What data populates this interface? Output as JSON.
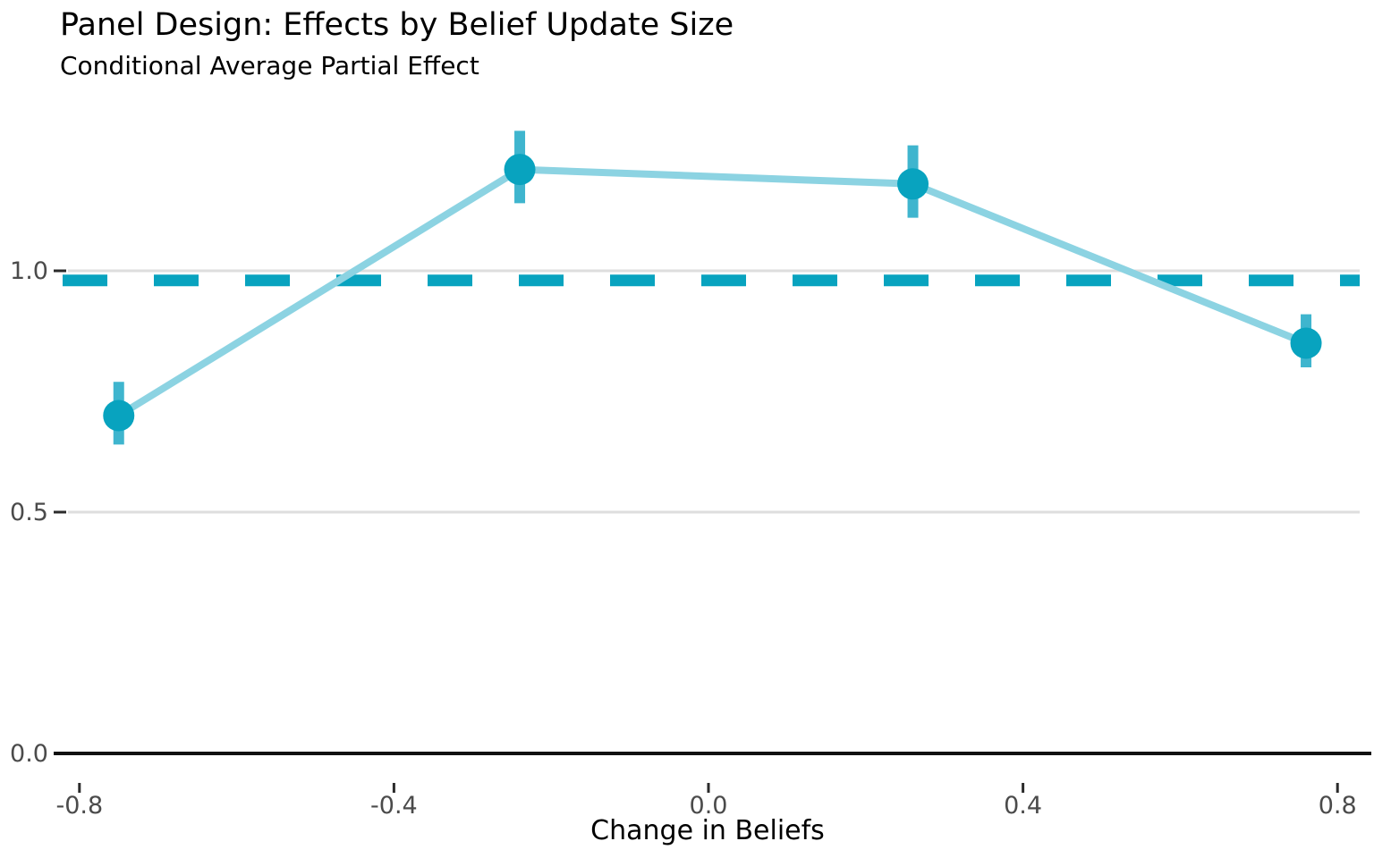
{
  "chart": {
    "title": "Panel Design: Effects by Belief Update Size",
    "subtitle": "Conditional Average Partial Effect",
    "xlabel": "Change in Beliefs"
  },
  "chart_data": {
    "type": "line",
    "title": "Panel Design: Effects by Belief Update Size",
    "subtitle": "Conditional Average Partial Effect",
    "xlabel": "Change in Beliefs",
    "ylabel": "",
    "legend": "none",
    "grid": "horizontal-only",
    "xlim": [
      -0.83,
      0.82
    ],
    "ylim": [
      0.0,
      1.38
    ],
    "series": [
      {
        "name": "Conditional Average Partial Effect",
        "marker": "point-with-error-bar",
        "points": [
          {
            "x": -0.75,
            "y": 0.7,
            "ci_low": 0.64,
            "ci_high": 0.77
          },
          {
            "x": -0.24,
            "y": 1.21,
            "ci_low": 1.14,
            "ci_high": 1.29
          },
          {
            "x": 0.26,
            "y": 1.18,
            "ci_low": 1.11,
            "ci_high": 1.26
          },
          {
            "x": 0.76,
            "y": 0.85,
            "ci_low": 0.8,
            "ci_high": 0.91
          }
        ]
      }
    ],
    "reference_line": {
      "y": 0.98,
      "style": "dashed",
      "orientation": "horizontal"
    },
    "x_ticks": [
      {
        "value": -0.8,
        "label": "-0.8"
      },
      {
        "value": -0.4,
        "label": "-0.4"
      },
      {
        "value": 0.0,
        "label": "0.0"
      },
      {
        "value": 0.4,
        "label": "0.4"
      },
      {
        "value": 0.8,
        "label": "0.8"
      }
    ],
    "y_ticks": [
      {
        "value": 0.0,
        "label": "0.0"
      },
      {
        "value": 0.5,
        "label": "0.5"
      },
      {
        "value": 1.0,
        "label": "1.0"
      }
    ],
    "colors": {
      "point": "#08a3bf",
      "error_bar": "#3fb5ce",
      "line": "#8cd3e2",
      "reference": "#08a3bf",
      "gridline": "#dedede",
      "axis": "#111111",
      "tick_label": "#4b4b4b",
      "text": "#000000"
    }
  }
}
